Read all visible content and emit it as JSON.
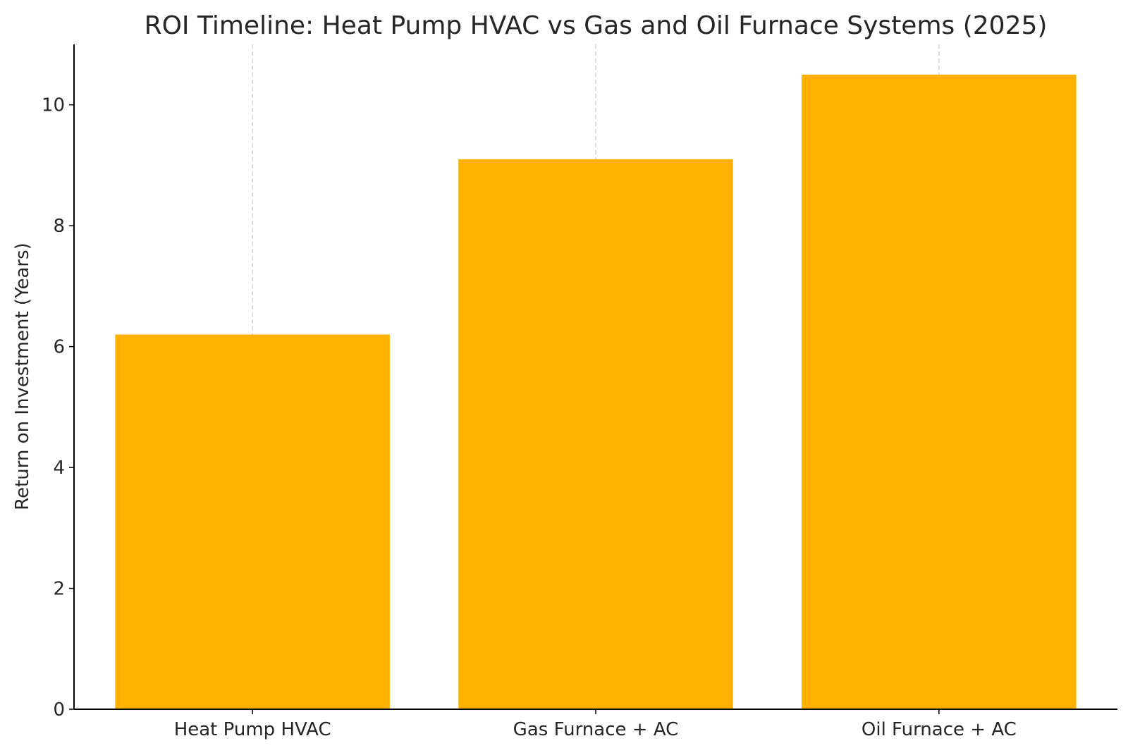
{
  "chart_data": {
    "type": "bar",
    "title": "ROI Timeline: Heat Pump HVAC vs Gas and Oil Furnace Systems (2025)",
    "xlabel": "",
    "ylabel": "Return on Investment (Years)",
    "categories": [
      "Heat Pump HVAC",
      "Gas Furnace + AC",
      "Oil Furnace + AC"
    ],
    "values": [
      6.2,
      9.1,
      10.5
    ],
    "ylim": [
      0,
      11
    ],
    "yticks": [
      0,
      2,
      4,
      6,
      8,
      10
    ],
    "grid": "x-only, dashed",
    "bar_color": "#FFB000"
  }
}
